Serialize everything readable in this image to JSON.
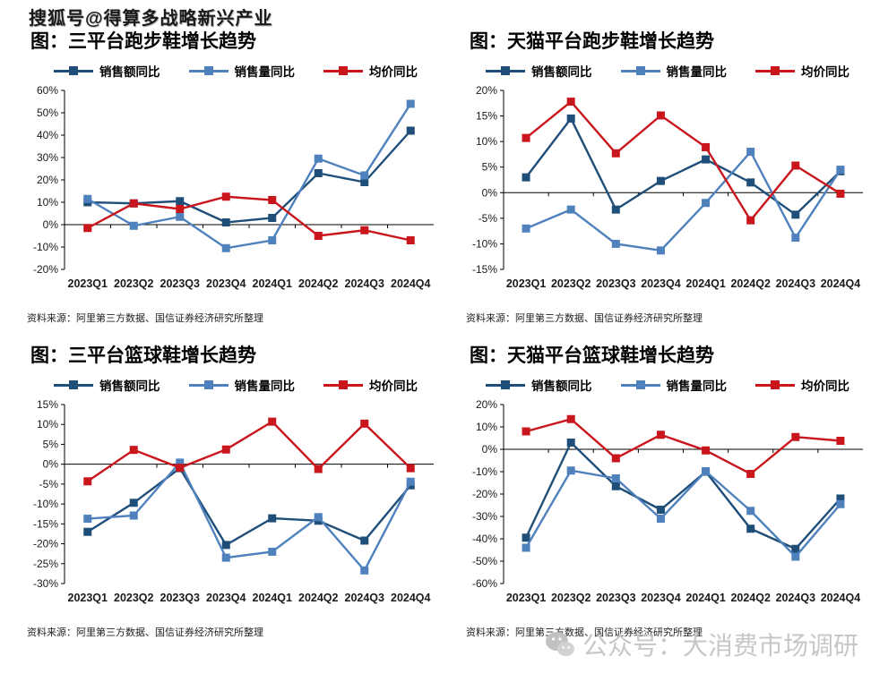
{
  "watermark_top": "搜狐号@得算多战略新兴产业",
  "watermark_bottom": {
    "icon": "wechat-icon",
    "text": "公众号：大消费市场调研"
  },
  "colors": {
    "sales_yoy": "#1F4E79",
    "volume_yoy": "#4F81BD",
    "price_yoy": "#C9161D",
    "axis": "#000000"
  },
  "chart_data": [
    {
      "type": "line",
      "title": "图：三平台跑步鞋增长趋势",
      "source": "资料来源：阿里第三方数据、国信证券经济研究所整理",
      "categories": [
        "2023Q1",
        "2023Q2",
        "2023Q3",
        "2023Q4",
        "2024Q1",
        "2024Q2",
        "2024Q3",
        "2024Q4"
      ],
      "ylim": [
        -20,
        60
      ],
      "ytick_step": 10,
      "grid": false,
      "legend_position": "top",
      "series": [
        {
          "key": "sales-yoy",
          "name": "销售额同比",
          "color": "#1F4E79",
          "values": [
            10,
            9.5,
            10.5,
            1,
            3,
            23,
            19,
            42
          ]
        },
        {
          "key": "volume-yoy",
          "name": "销售量同比",
          "color": "#4F81BD",
          "values": [
            11.5,
            -0.5,
            3.5,
            -10.5,
            -7,
            29.5,
            22,
            54
          ]
        },
        {
          "key": "price-yoy",
          "name": "均价同比",
          "color": "#C9161D",
          "values": [
            -1.5,
            9.5,
            7,
            12.5,
            11,
            -5,
            -2.5,
            -7
          ]
        }
      ]
    },
    {
      "type": "line",
      "title": "图：天猫平台跑步鞋增长趋势",
      "source": "资料来源：阿里第三方数据、国信证券经济研究所整理",
      "categories": [
        "2023Q1",
        "2023Q2",
        "2023Q3",
        "2023Q4",
        "2024Q1",
        "2024Q2",
        "2024Q3",
        "2024Q4"
      ],
      "ylim": [
        -15,
        20
      ],
      "ytick_step": 5,
      "grid": false,
      "legend_position": "top",
      "series": [
        {
          "key": "sales-yoy",
          "name": "销售额同比",
          "color": "#1F4E79",
          "values": [
            3,
            14.5,
            -3.3,
            2.3,
            6.5,
            2,
            -4.3,
            4.2
          ]
        },
        {
          "key": "volume-yoy",
          "name": "销售量同比",
          "color": "#4F81BD",
          "values": [
            -7,
            -3.3,
            -10,
            -11.3,
            -2,
            8,
            -8.8,
            4.5
          ]
        },
        {
          "key": "price-yoy",
          "name": "均价同比",
          "color": "#C9161D",
          "values": [
            10.7,
            17.8,
            7.7,
            15.1,
            8.9,
            -5.4,
            5.3,
            -0.2
          ]
        }
      ]
    },
    {
      "type": "line",
      "title": "图：三平台篮球鞋增长趋势",
      "source": "资料来源：阿里第三方数据、国信证券经济研究所整理",
      "categories": [
        "2023Q1",
        "2023Q2",
        "2023Q3",
        "2023Q4",
        "2024Q1",
        "2024Q2",
        "2024Q3",
        "2024Q4"
      ],
      "ylim": [
        -30,
        15
      ],
      "ytick_step": 5,
      "grid": false,
      "legend_position": "top",
      "series": [
        {
          "key": "sales-yoy",
          "name": "销售额同比",
          "color": "#1F4E79",
          "values": [
            -17,
            -9.7,
            -1,
            -20.3,
            -13.6,
            -14.2,
            -19.2,
            -5.3
          ]
        },
        {
          "key": "volume-yoy",
          "name": "销售量同比",
          "color": "#4F81BD",
          "values": [
            -13.7,
            -12.9,
            0.4,
            -23.5,
            -22,
            -13.3,
            -26.7,
            -4.4
          ]
        },
        {
          "key": "price-yoy",
          "name": "均价同比",
          "color": "#C9161D",
          "values": [
            -4.3,
            3.6,
            -0.9,
            3.7,
            10.7,
            -1.2,
            10.2,
            -1
          ]
        }
      ]
    },
    {
      "type": "line",
      "title": "图：天猫平台篮球鞋增长趋势",
      "source": "资料来源：阿里第三方数据、国信证券经济研究所整理",
      "categories": [
        "2023Q1",
        "2023Q2",
        "2023Q3",
        "2023Q4",
        "2024Q1",
        "2024Q2",
        "2024Q3",
        "2024Q4"
      ],
      "ylim": [
        -60,
        20
      ],
      "ytick_step": 10,
      "grid": false,
      "legend_position": "top",
      "series": [
        {
          "key": "sales-yoy",
          "name": "销售额同比",
          "color": "#1F4E79",
          "values": [
            -39.5,
            3,
            -16.5,
            -27,
            -10,
            -35.5,
            -44.5,
            -22
          ]
        },
        {
          "key": "volume-yoy",
          "name": "销售量同比",
          "color": "#4F81BD",
          "values": [
            -44,
            -9.5,
            -13,
            -31,
            -9.8,
            -27.5,
            -48,
            -24.5
          ]
        },
        {
          "key": "price-yoy",
          "name": "均价同比",
          "color": "#C9161D",
          "values": [
            8,
            13.5,
            -4,
            6.5,
            -0.5,
            -11,
            5.5,
            3.8
          ]
        }
      ]
    }
  ]
}
